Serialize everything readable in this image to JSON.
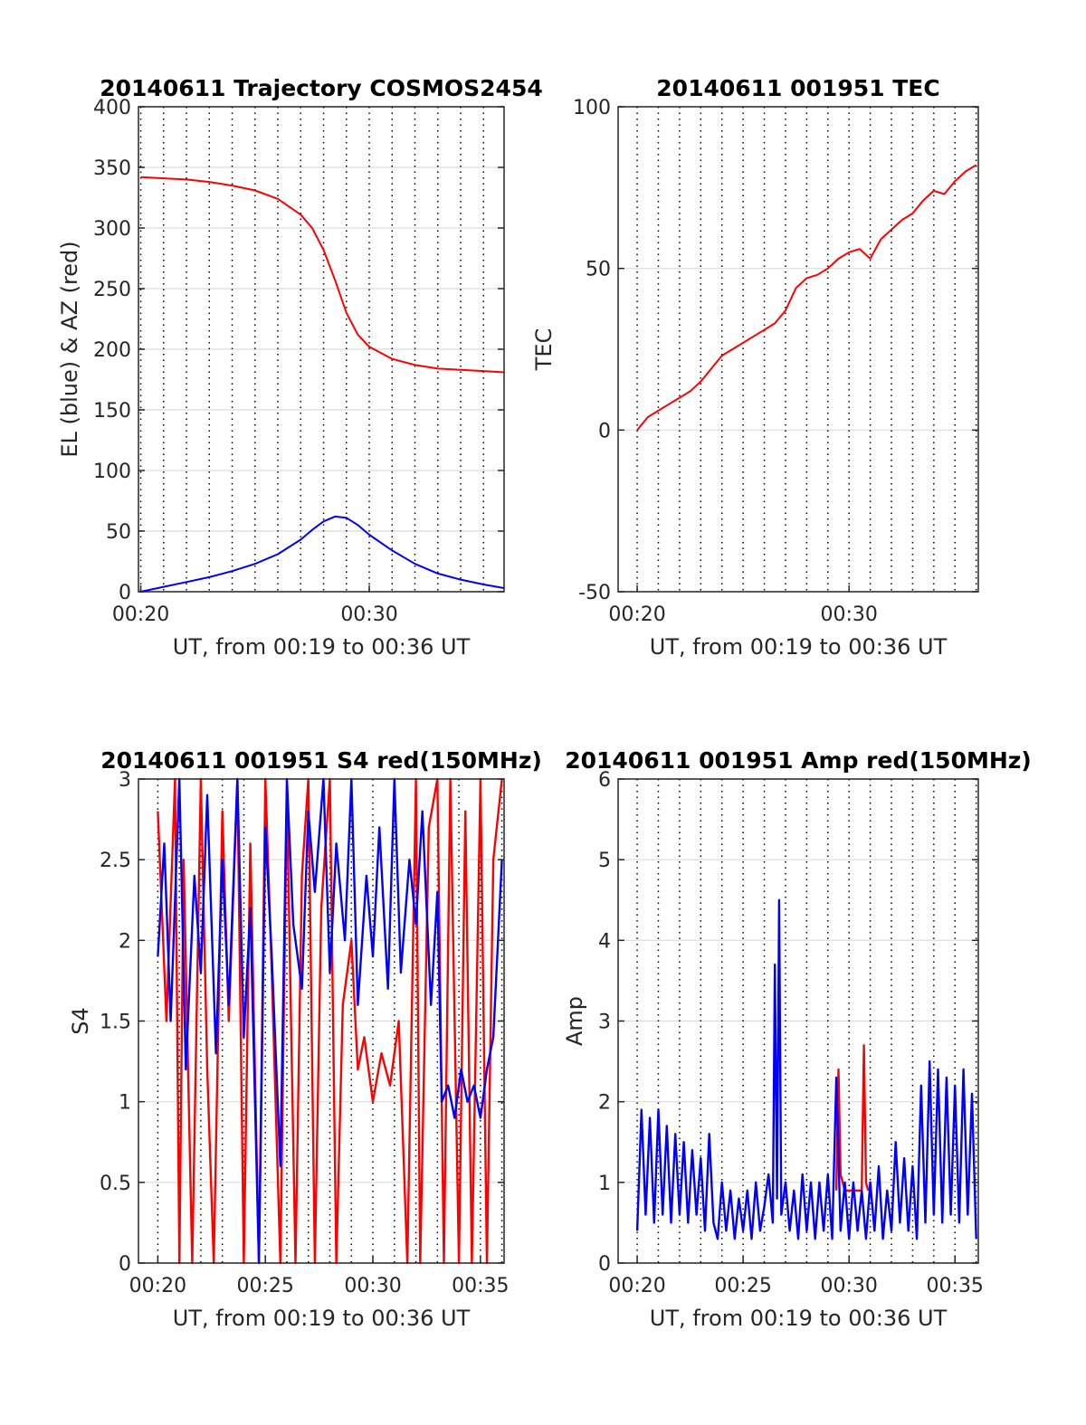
{
  "colors": {
    "red": "#ff0000",
    "blue": "#0000ff",
    "grid": "#dcdcdc",
    "vgrid": "#000000"
  },
  "chart_data": [
    {
      "type": "line",
      "title": "20140611 Trajectory COSMOS2454",
      "xlabel": "UT, from 00:19 to 00:36 UT",
      "ylabel": "EL (blue) & AZ (red)",
      "xlim_minutes": [
        19.9,
        35.9
      ],
      "ylim": [
        0,
        400
      ],
      "xticks": [
        {
          "v": 20,
          "label": "00:20"
        },
        {
          "v": 30,
          "label": "00:30"
        }
      ],
      "yticks": [
        {
          "v": 0,
          "label": "0"
        },
        {
          "v": 50,
          "label": "50"
        },
        {
          "v": 100,
          "label": "100"
        },
        {
          "v": 150,
          "label": "150"
        },
        {
          "v": 200,
          "label": "200"
        },
        {
          "v": 250,
          "label": "250"
        },
        {
          "v": 300,
          "label": "300"
        },
        {
          "v": 350,
          "label": "350"
        },
        {
          "v": 400,
          "label": "400"
        }
      ],
      "grid": true,
      "series": [
        {
          "color": "#ff0000",
          "x": [
            20.0,
            21.0,
            22.0,
            23.0,
            24.0,
            25.0,
            26.0,
            27.0,
            27.5,
            28.0,
            28.5,
            29.0,
            29.5,
            30.0,
            31.0,
            32.0,
            33.0,
            34.0,
            35.0,
            35.9
          ],
          "y": [
            342,
            341,
            340,
            338,
            335,
            331,
            324,
            311,
            300,
            282,
            257,
            230,
            212,
            202,
            192,
            187,
            184,
            183,
            182,
            181
          ]
        },
        {
          "color": "#0000ff",
          "x": [
            20.0,
            21.0,
            22.0,
            23.0,
            24.0,
            25.0,
            26.0,
            27.0,
            27.5,
            28.0,
            28.5,
            29.0,
            29.5,
            30.0,
            31.0,
            32.0,
            33.0,
            34.0,
            35.0,
            35.9
          ],
          "y": [
            0,
            4,
            8,
            12,
            17,
            23,
            31,
            43,
            51,
            58,
            62,
            61,
            55,
            47,
            34,
            23,
            15,
            10,
            6,
            3
          ]
        }
      ]
    },
    {
      "type": "line",
      "title": "20140611 001951 TEC",
      "xlabel": "UT, from 00:19 to 00:36 UT",
      "ylabel": "TEC",
      "xlim_minutes": [
        19.1,
        36.1
      ],
      "ylim": [
        -50,
        100
      ],
      "xticks": [
        {
          "v": 20,
          "label": "00:20"
        },
        {
          "v": 30,
          "label": "00:30"
        }
      ],
      "yticks": [
        {
          "v": -50,
          "label": "-50"
        },
        {
          "v": 0,
          "label": "0"
        },
        {
          "v": 50,
          "label": "50"
        },
        {
          "v": 100,
          "label": "100"
        }
      ],
      "grid": true,
      "series": [
        {
          "color": "#ff0000",
          "x": [
            20.0,
            20.5,
            21.0,
            21.5,
            22.0,
            22.5,
            23.0,
            23.5,
            24.0,
            24.5,
            25.0,
            25.5,
            26.0,
            26.5,
            27.0,
            27.5,
            28.0,
            28.5,
            29.0,
            29.5,
            30.0,
            30.5,
            31.0,
            31.5,
            32.0,
            32.5,
            33.0,
            33.5,
            34.0,
            34.5,
            35.0,
            35.5,
            36.0
          ],
          "y": [
            0,
            4,
            6,
            8,
            10,
            12,
            15,
            19,
            23,
            25,
            27,
            29,
            31,
            33,
            37,
            44,
            47,
            48,
            50,
            53,
            55,
            56,
            53,
            59,
            62,
            65,
            67,
            71,
            74,
            73,
            77,
            80,
            82
          ]
        }
      ]
    },
    {
      "type": "line",
      "title": "20140611 001951 S4 red(150MHz)",
      "xlabel": "UT, from 00:19 to 00:36 UT",
      "ylabel": "S4",
      "xlim_minutes": [
        19.1,
        36.1
      ],
      "ylim": [
        0,
        3
      ],
      "xticks": [
        {
          "v": 20,
          "label": "00:20"
        },
        {
          "v": 25,
          "label": "00:25"
        },
        {
          "v": 30,
          "label": "00:30"
        },
        {
          "v": 35,
          "label": "00:35"
        }
      ],
      "yticks": [
        {
          "v": 0,
          "label": "0"
        },
        {
          "v": 0.5,
          "label": "0.5"
        },
        {
          "v": 1,
          "label": "1"
        },
        {
          "v": 1.5,
          "label": "1.5"
        },
        {
          "v": 2,
          "label": "2"
        },
        {
          "v": 2.5,
          "label": "2.5"
        },
        {
          "v": 3,
          "label": "3"
        }
      ],
      "grid": true,
      "series": [
        {
          "color": "#ff0000",
          "x": [
            20.0,
            20.4,
            20.8,
            21.0,
            21.2,
            21.6,
            22.0,
            22.3,
            22.6,
            23.0,
            23.3,
            23.7,
            24.0,
            24.3,
            24.7,
            25.0,
            25.3,
            25.7,
            26.0,
            26.4,
            26.7,
            27.0,
            27.3,
            27.6,
            28.0,
            28.3,
            28.6,
            29.0,
            29.3,
            29.6,
            30.0,
            30.4,
            30.8,
            31.2,
            31.6,
            32.0,
            32.2,
            32.6,
            33.0,
            33.3,
            33.6,
            34.0,
            34.3,
            34.6,
            35.0,
            35.3,
            35.6,
            36.0
          ],
          "y": [
            2.8,
            1.5,
            3.0,
            0,
            2.5,
            0,
            3.0,
            1.2,
            0,
            2.8,
            1.5,
            3.0,
            0,
            2.6,
            0,
            3.0,
            1.8,
            0,
            2.9,
            0,
            2.4,
            3.0,
            0,
            2.2,
            3.0,
            0,
            1.6,
            2.0,
            1.2,
            1.4,
            1.0,
            1.3,
            1.1,
            1.5,
            0,
            3.0,
            0,
            2.7,
            3.0,
            0,
            3.0,
            0,
            2.8,
            0,
            3.0,
            0,
            2.5,
            3.0
          ]
        },
        {
          "color": "#0000ff",
          "x": [
            20.0,
            20.3,
            20.6,
            21.0,
            21.3,
            21.7,
            22.0,
            22.3,
            22.7,
            23.0,
            23.3,
            23.7,
            24.0,
            24.3,
            24.7,
            25.0,
            25.3,
            25.7,
            26.0,
            26.3,
            26.7,
            27.0,
            27.3,
            27.7,
            28.0,
            28.3,
            28.7,
            29.0,
            29.3,
            29.7,
            30.0,
            30.3,
            30.7,
            31.0,
            31.3,
            31.7,
            32.0,
            32.3,
            32.7,
            33.0,
            33.2,
            33.5,
            33.8,
            34.1,
            34.4,
            34.7,
            35.0,
            35.3,
            35.6,
            36.0
          ],
          "y": [
            1.9,
            2.6,
            1.5,
            3.0,
            1.2,
            2.4,
            1.8,
            2.9,
            1.3,
            2.5,
            1.6,
            3.0,
            1.4,
            2.2,
            0,
            2.7,
            1.9,
            0.6,
            3.0,
            2.1,
            1.7,
            2.8,
            2.3,
            3.0,
            1.8,
            2.6,
            2.0,
            3.0,
            1.6,
            2.4,
            1.9,
            2.7,
            1.7,
            3.0,
            1.8,
            2.5,
            2.1,
            2.8,
            1.6,
            2.3,
            1.0,
            1.1,
            0.9,
            1.2,
            1.0,
            1.1,
            0.9,
            1.2,
            1.4,
            2.5
          ]
        }
      ]
    },
    {
      "type": "line",
      "title": "20140611 001951 Amp red(150MHz)",
      "xlabel": "UT, from 00:19 to 00:36 UT",
      "ylabel": "Amp",
      "xlim_minutes": [
        19.1,
        36.1
      ],
      "ylim": [
        0,
        6
      ],
      "xticks": [
        {
          "v": 20,
          "label": "00:20"
        },
        {
          "v": 25,
          "label": "00:25"
        },
        {
          "v": 30,
          "label": "00:30"
        },
        {
          "v": 35,
          "label": "00:35"
        }
      ],
      "yticks": [
        {
          "v": 0,
          "label": "0"
        },
        {
          "v": 1,
          "label": "1"
        },
        {
          "v": 2,
          "label": "2"
        },
        {
          "v": 3,
          "label": "3"
        },
        {
          "v": 4,
          "label": "4"
        },
        {
          "v": 5,
          "label": "5"
        },
        {
          "v": 6,
          "label": "6"
        }
      ],
      "grid": true,
      "series": [
        {
          "color": "#ff0000",
          "x": [
            29.4,
            29.5,
            29.6,
            29.8,
            30.6,
            30.7,
            30.8,
            30.9
          ],
          "y": [
            0.9,
            2.4,
            1.1,
            0.9,
            0.9,
            2.7,
            1.0,
            0.9
          ]
        },
        {
          "color": "#0000ff",
          "x": [
            20.0,
            20.2,
            20.4,
            20.6,
            20.8,
            21.0,
            21.2,
            21.4,
            21.6,
            21.8,
            22.0,
            22.2,
            22.4,
            22.6,
            22.8,
            23.0,
            23.2,
            23.4,
            23.6,
            23.8,
            24.0,
            24.2,
            24.4,
            24.6,
            24.8,
            25.0,
            25.2,
            25.4,
            25.6,
            25.8,
            26.0,
            26.2,
            26.4,
            26.5,
            26.6,
            26.7,
            26.8,
            27.0,
            27.2,
            27.4,
            27.6,
            27.8,
            28.0,
            28.2,
            28.4,
            28.6,
            28.8,
            29.0,
            29.2,
            29.4,
            29.6,
            29.8,
            30.0,
            30.2,
            30.4,
            30.6,
            30.8,
            31.0,
            31.2,
            31.4,
            31.6,
            31.8,
            32.0,
            32.2,
            32.4,
            32.6,
            32.8,
            33.0,
            33.2,
            33.4,
            33.6,
            33.8,
            34.0,
            34.2,
            34.4,
            34.6,
            34.8,
            35.0,
            35.2,
            35.4,
            35.6,
            35.8,
            36.0
          ],
          "y": [
            0.4,
            1.9,
            0.6,
            1.8,
            0.5,
            1.9,
            0.6,
            1.7,
            0.5,
            1.6,
            0.6,
            1.5,
            0.5,
            1.4,
            0.6,
            1.3,
            0.4,
            1.6,
            0.5,
            0.3,
            1.0,
            0.4,
            0.9,
            0.3,
            0.8,
            0.4,
            0.9,
            0.3,
            1.0,
            0.4,
            0.7,
            1.1,
            0.5,
            3.7,
            0.8,
            4.5,
            0.6,
            1.0,
            0.4,
            0.9,
            0.3,
            1.1,
            0.4,
            1.0,
            0.3,
            1.0,
            0.4,
            1.1,
            0.3,
            2.3,
            0.4,
            1.0,
            0.3,
            1.0,
            0.4,
            0.9,
            0.3,
            1.0,
            0.4,
            1.2,
            0.3,
            0.9,
            0.4,
            1.5,
            0.5,
            1.3,
            0.4,
            1.2,
            0.3,
            2.2,
            0.5,
            2.5,
            0.6,
            2.4,
            0.5,
            2.3,
            0.6,
            2.2,
            0.5,
            2.4,
            0.6,
            2.1,
            0.3
          ]
        }
      ]
    }
  ]
}
